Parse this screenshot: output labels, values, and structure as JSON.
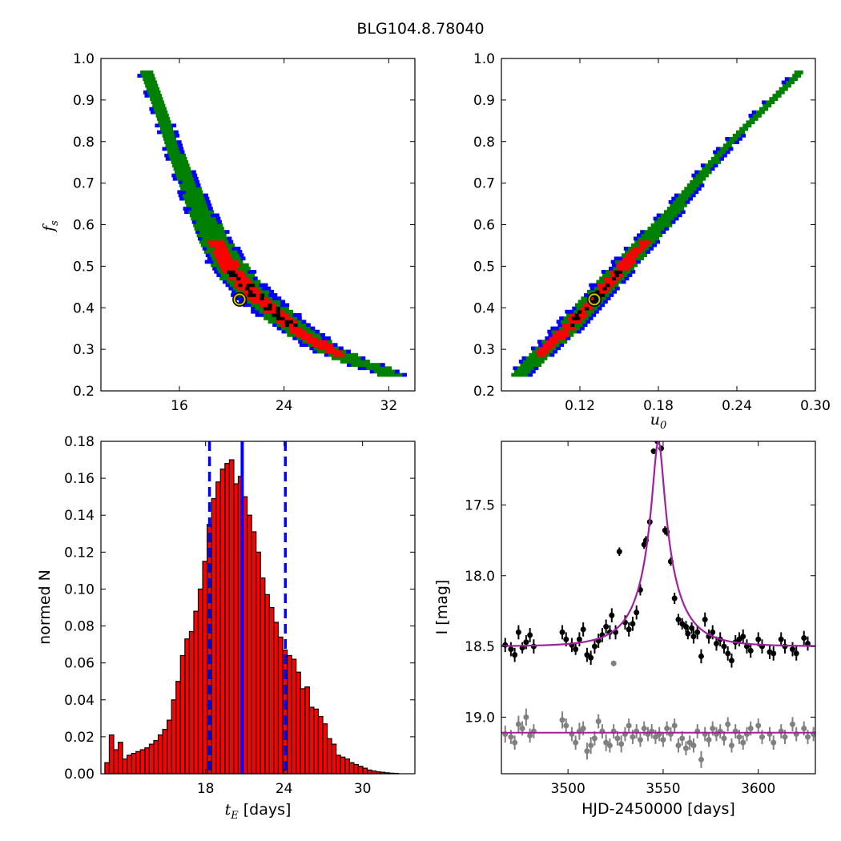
{
  "figure": {
    "title": "BLG104.8.78040"
  },
  "colors": {
    "blue": "#0000ff",
    "green": "#008000",
    "red": "#ff0000",
    "black": "#000000",
    "magenta": "#a020a0",
    "gray": "#808080",
    "marker_yellow": "#c8c800"
  },
  "chart_data": [
    {
      "id": "fs_vs_tE",
      "type": "heatmap",
      "ylabel": "f_s",
      "ylabel_main": "f",
      "ylabel_sub": "s",
      "xlim": [
        10,
        34
      ],
      "ylim": [
        0.2,
        1.0
      ],
      "xticks": [
        16,
        24,
        32
      ],
      "xtick_labels": [
        "16",
        "24",
        "32"
      ],
      "yticks": [
        0.2,
        0.3,
        0.4,
        0.5,
        0.6,
        0.7,
        0.8,
        0.9,
        1.0
      ],
      "ytick_labels": [
        "0.2",
        "0.3",
        "0.4",
        "0.5",
        "0.6",
        "0.7",
        "0.8",
        "0.9",
        "1.0"
      ],
      "ridge": [
        [
          13.2,
          0.97
        ],
        [
          14.5,
          0.86
        ],
        [
          15.5,
          0.77
        ],
        [
          17,
          0.66
        ],
        [
          18.5,
          0.56
        ],
        [
          20,
          0.48
        ],
        [
          21.5,
          0.43
        ],
        [
          23,
          0.39
        ],
        [
          25,
          0.34
        ],
        [
          27,
          0.3
        ],
        [
          29,
          0.27
        ],
        [
          31,
          0.25
        ],
        [
          32,
          0.235
        ]
      ],
      "best_fit": {
        "x": 20.6,
        "y": 0.42
      }
    },
    {
      "id": "fs_vs_u0",
      "type": "heatmap",
      "xlabel": "u_0",
      "xlabel_main": "u",
      "xlabel_sub": "0",
      "xlim": [
        0.06,
        0.3
      ],
      "ylim": [
        0.2,
        1.0
      ],
      "xticks": [
        0.12,
        0.18,
        0.24,
        0.3
      ],
      "xtick_labels": [
        "0.12",
        "0.18",
        "0.24",
        "0.30"
      ],
      "yticks": [
        0.2,
        0.3,
        0.4,
        0.5,
        0.6,
        0.7,
        0.8,
        0.9,
        1.0
      ],
      "ytick_labels": [
        "0.2",
        "0.3",
        "0.4",
        "0.5",
        "0.6",
        "0.7",
        "0.8",
        "0.9",
        "1.0"
      ],
      "ridge": [
        [
          0.073,
          0.235
        ],
        [
          0.09,
          0.29
        ],
        [
          0.11,
          0.35
        ],
        [
          0.13,
          0.42
        ],
        [
          0.15,
          0.49
        ],
        [
          0.17,
          0.56
        ],
        [
          0.19,
          0.63
        ],
        [
          0.21,
          0.71
        ],
        [
          0.235,
          0.8
        ],
        [
          0.26,
          0.88
        ],
        [
          0.285,
          0.96
        ]
      ],
      "best_fit": {
        "x": 0.131,
        "y": 0.42
      }
    },
    {
      "id": "tE_histogram",
      "type": "bar",
      "xlabel_main": "t",
      "xlabel_sub": "E",
      "xlabel_rest": " [days]",
      "ylabel": "normed N",
      "xlim": [
        10,
        34
      ],
      "ylim": [
        0,
        0.18
      ],
      "xticks": [
        18,
        24,
        30
      ],
      "xtick_labels": [
        "18",
        "24",
        "30"
      ],
      "yticks": [
        0.0,
        0.02,
        0.04,
        0.06,
        0.08,
        0.1,
        0.12,
        0.14,
        0.16,
        0.18
      ],
      "ytick_labels": [
        "0.00",
        "0.02",
        "0.04",
        "0.06",
        "0.08",
        "0.10",
        "0.12",
        "0.14",
        "0.16",
        "0.18"
      ],
      "bin_start": 10.3,
      "bin_width": 0.34,
      "values": [
        0.006,
        0.021,
        0.013,
        0.017,
        0.008,
        0.01,
        0.011,
        0.012,
        0.013,
        0.014,
        0.016,
        0.018,
        0.021,
        0.024,
        0.029,
        0.04,
        0.05,
        0.064,
        0.073,
        0.077,
        0.088,
        0.1,
        0.115,
        0.135,
        0.149,
        0.158,
        0.165,
        0.168,
        0.17,
        0.157,
        0.161,
        0.15,
        0.14,
        0.131,
        0.12,
        0.106,
        0.097,
        0.09,
        0.082,
        0.074,
        0.067,
        0.064,
        0.062,
        0.055,
        0.046,
        0.047,
        0.036,
        0.035,
        0.031,
        0.027,
        0.019,
        0.016,
        0.01,
        0.009,
        0.008,
        0.006,
        0.005,
        0.004,
        0.003,
        0.002,
        0.0015,
        0.001,
        0.0008,
        0.0005,
        0.0003,
        0.0002
      ],
      "median": 20.8,
      "ci": [
        18.3,
        24.1
      ]
    },
    {
      "id": "light_curve",
      "type": "scatter",
      "xlabel": "HJD-2450000 [days]",
      "ylabel": "I [mag]",
      "xlim": [
        3465,
        3630
      ],
      "ylim": [
        19.4,
        17.05
      ],
      "y_inverted": true,
      "xticks": [
        3500,
        3550,
        3600
      ],
      "xtick_labels": [
        "3500",
        "3550",
        "3600"
      ],
      "yticks": [
        17.5,
        18.0,
        18.5,
        19.0
      ],
      "ytick_labels": [
        "17.5",
        "18.0",
        "18.5",
        "19.0"
      ],
      "model": {
        "t0": 3547.5,
        "tE": 20.6,
        "u0": 0.131,
        "fs": 0.42,
        "baseline": 18.5,
        "offset_baseline": 19.11
      },
      "points_black": [
        [
          3467,
          18.49,
          0.05
        ],
        [
          3470,
          18.52,
          0.05
        ],
        [
          3472,
          18.56,
          0.05
        ],
        [
          3474,
          18.4,
          0.05
        ],
        [
          3476,
          18.51,
          0.04
        ],
        [
          3478,
          18.47,
          0.05
        ],
        [
          3480,
          18.42,
          0.05
        ],
        [
          3482,
          18.5,
          0.05
        ],
        [
          3497,
          18.4,
          0.05
        ],
        [
          3499,
          18.45,
          0.05
        ],
        [
          3502,
          18.49,
          0.05
        ],
        [
          3504,
          18.52,
          0.04
        ],
        [
          3506,
          18.45,
          0.05
        ],
        [
          3508,
          18.38,
          0.05
        ],
        [
          3510,
          18.56,
          0.05
        ],
        [
          3512,
          18.58,
          0.05
        ],
        [
          3514,
          18.5,
          0.05
        ],
        [
          3516,
          18.46,
          0.05
        ],
        [
          3518,
          18.42,
          0.05
        ],
        [
          3520,
          18.36,
          0.05
        ],
        [
          3522,
          18.4,
          0.05
        ],
        [
          3523,
          18.28,
          0.05
        ],
        [
          3525,
          18.4,
          0.05
        ],
        [
          3527,
          17.83,
          0.03
        ],
        [
          3530,
          18.33,
          0.05
        ],
        [
          3532,
          18.38,
          0.05
        ],
        [
          3534,
          18.34,
          0.05
        ],
        [
          3536,
          18.26,
          0.05
        ],
        [
          3538,
          18.1,
          0.04
        ],
        [
          3540,
          17.78,
          0.03
        ],
        [
          3541,
          17.75,
          0.03
        ],
        [
          3543,
          17.62,
          0.03
        ],
        [
          3545,
          17.12,
          0.02
        ],
        [
          3547,
          17.05,
          0.02
        ],
        [
          3549,
          17.1,
          0.02
        ],
        [
          3551,
          17.68,
          0.03
        ],
        [
          3552,
          17.69,
          0.03
        ],
        [
          3554,
          17.9,
          0.03
        ],
        [
          3556,
          18.16,
          0.04
        ],
        [
          3558,
          18.31,
          0.04
        ],
        [
          3560,
          18.34,
          0.04
        ],
        [
          3562,
          18.36,
          0.04
        ],
        [
          3563,
          18.41,
          0.04
        ],
        [
          3565,
          18.37,
          0.04
        ],
        [
          3566,
          18.43,
          0.05
        ],
        [
          3568,
          18.4,
          0.05
        ],
        [
          3570,
          18.57,
          0.05
        ],
        [
          3572,
          18.31,
          0.05
        ],
        [
          3574,
          18.43,
          0.05
        ],
        [
          3576,
          18.4,
          0.05
        ],
        [
          3578,
          18.48,
          0.05
        ],
        [
          3580,
          18.45,
          0.05
        ],
        [
          3582,
          18.5,
          0.05
        ],
        [
          3584,
          18.55,
          0.05
        ],
        [
          3586,
          18.6,
          0.05
        ],
        [
          3588,
          18.47,
          0.05
        ],
        [
          3590,
          18.45,
          0.05
        ],
        [
          3592,
          18.43,
          0.05
        ],
        [
          3594,
          18.5,
          0.05
        ],
        [
          3596,
          18.53,
          0.05
        ],
        [
          3600,
          18.45,
          0.05
        ],
        [
          3602,
          18.5,
          0.05
        ],
        [
          3606,
          18.54,
          0.05
        ],
        [
          3608,
          18.55,
          0.05
        ],
        [
          3612,
          18.45,
          0.05
        ],
        [
          3614,
          18.5,
          0.05
        ],
        [
          3618,
          18.52,
          0.05
        ],
        [
          3620,
          18.55,
          0.05
        ],
        [
          3624,
          18.44,
          0.05
        ],
        [
          3626,
          18.48,
          0.05
        ]
      ],
      "points_gray": [
        [
          3524,
          18.62,
          0.02
        ],
        [
          3467,
          19.12,
          0.06
        ],
        [
          3470,
          19.14,
          0.05
        ],
        [
          3472,
          19.18,
          0.05
        ],
        [
          3474,
          19.05,
          0.06
        ],
        [
          3476,
          19.08,
          0.05
        ],
        [
          3478,
          19.0,
          0.06
        ],
        [
          3480,
          19.13,
          0.05
        ],
        [
          3482,
          19.1,
          0.05
        ],
        [
          3497,
          19.02,
          0.06
        ],
        [
          3499,
          19.06,
          0.05
        ],
        [
          3502,
          19.12,
          0.05
        ],
        [
          3504,
          19.18,
          0.05
        ],
        [
          3506,
          19.1,
          0.06
        ],
        [
          3508,
          19.08,
          0.05
        ],
        [
          3510,
          19.24,
          0.06
        ],
        [
          3512,
          19.2,
          0.06
        ],
        [
          3514,
          19.15,
          0.05
        ],
        [
          3516,
          19.03,
          0.05
        ],
        [
          3518,
          19.1,
          0.05
        ],
        [
          3520,
          19.18,
          0.06
        ],
        [
          3522,
          19.2,
          0.05
        ],
        [
          3524,
          19.1,
          0.05
        ],
        [
          3526,
          19.15,
          0.05
        ],
        [
          3528,
          19.19,
          0.06
        ],
        [
          3530,
          19.12,
          0.05
        ],
        [
          3532,
          19.06,
          0.05
        ],
        [
          3534,
          19.14,
          0.05
        ],
        [
          3536,
          19.1,
          0.05
        ],
        [
          3538,
          19.16,
          0.05
        ],
        [
          3540,
          19.08,
          0.05
        ],
        [
          3542,
          19.12,
          0.05
        ],
        [
          3544,
          19.1,
          0.05
        ],
        [
          3546,
          19.14,
          0.05
        ],
        [
          3548,
          19.12,
          0.05
        ],
        [
          3550,
          19.16,
          0.05
        ],
        [
          3552,
          19.08,
          0.05
        ],
        [
          3554,
          19.12,
          0.05
        ],
        [
          3556,
          19.06,
          0.05
        ],
        [
          3558,
          19.2,
          0.05
        ],
        [
          3560,
          19.15,
          0.05
        ],
        [
          3562,
          19.22,
          0.05
        ],
        [
          3564,
          19.18,
          0.05
        ],
        [
          3566,
          19.2,
          0.05
        ],
        [
          3568,
          19.1,
          0.05
        ],
        [
          3570,
          19.3,
          0.06
        ],
        [
          3572,
          19.12,
          0.05
        ],
        [
          3574,
          19.16,
          0.05
        ],
        [
          3576,
          19.08,
          0.05
        ],
        [
          3578,
          19.12,
          0.05
        ],
        [
          3580,
          19.1,
          0.05
        ],
        [
          3582,
          19.15,
          0.05
        ],
        [
          3584,
          19.05,
          0.05
        ],
        [
          3586,
          19.2,
          0.05
        ],
        [
          3588,
          19.1,
          0.05
        ],
        [
          3590,
          19.14,
          0.05
        ],
        [
          3592,
          19.18,
          0.05
        ],
        [
          3594,
          19.12,
          0.05
        ],
        [
          3596,
          19.08,
          0.05
        ],
        [
          3600,
          19.06,
          0.05
        ],
        [
          3602,
          19.14,
          0.05
        ],
        [
          3606,
          19.12,
          0.05
        ],
        [
          3608,
          19.18,
          0.05
        ],
        [
          3612,
          19.1,
          0.05
        ],
        [
          3614,
          19.14,
          0.05
        ],
        [
          3618,
          19.05,
          0.05
        ],
        [
          3620,
          19.12,
          0.05
        ],
        [
          3624,
          19.08,
          0.05
        ],
        [
          3626,
          19.14,
          0.05
        ],
        [
          3629,
          19.12,
          0.05
        ]
      ]
    }
  ]
}
